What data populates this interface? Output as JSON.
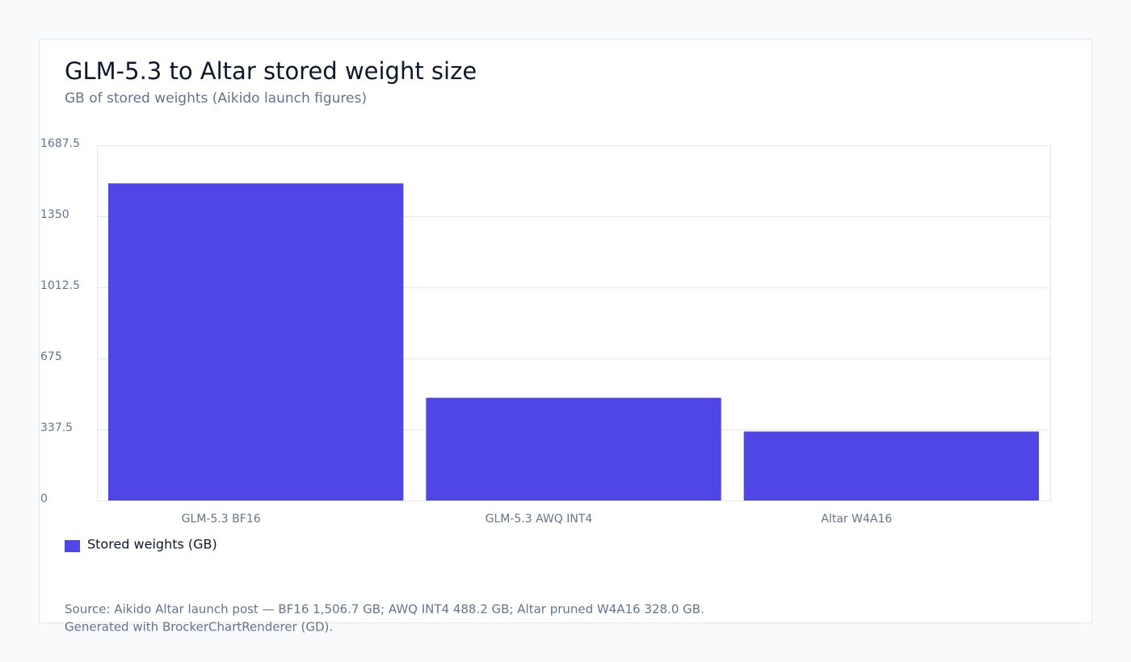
{
  "chart_data": {
    "type": "bar",
    "title": "GLM-5.3 to Altar stored weight size",
    "subtitle": "GB of stored weights (Aikido launch figures)",
    "categories": [
      "GLM-5.3 BF16",
      "GLM-5.3 AWQ INT4",
      "Altar W4A16"
    ],
    "series": [
      {
        "name": "Stored weights (GB)",
        "color": "#4f46e5",
        "values": [
          1506.7,
          488.2,
          328.0
        ]
      }
    ],
    "ylim": [
      0,
      1687.5
    ],
    "yticks": [
      0,
      337.5,
      675,
      1012.5,
      1350,
      1687.5
    ],
    "grid": true,
    "notes": [
      "Source: Aikido Altar launch post — BF16 1,506.7 GB; AWQ INT4 488.2 GB; Altar pruned W4A16 328.0 GB.",
      "Generated with BrockerChartRenderer (GD)."
    ]
  }
}
